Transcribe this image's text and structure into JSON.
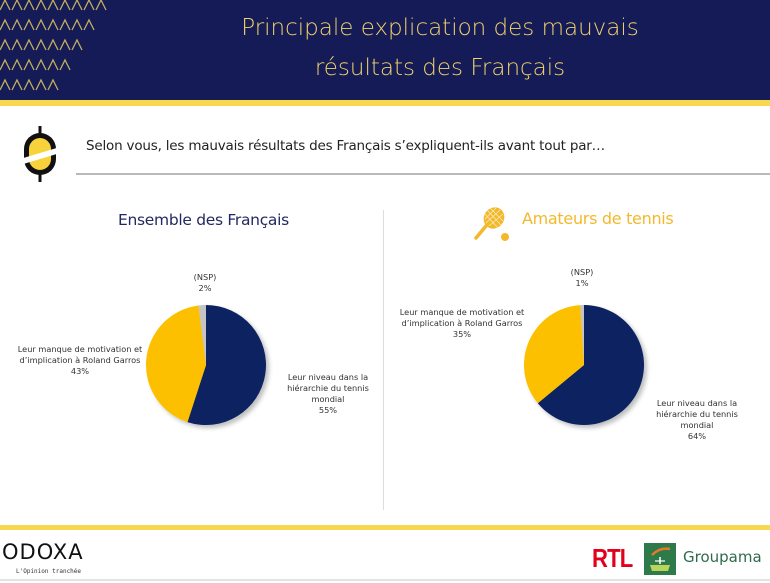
{
  "header": {
    "title_line1": "Principale explication des mauvais",
    "title_line2": "résultats des Français"
  },
  "question": "Selon vous, les mauvais résultats des Français s’expliquent-ils avant tout par…",
  "colors": {
    "navy": "#0e2461",
    "yellow": "#fcc000",
    "gray": "#c4c4c4",
    "accent_stripe": "#f7d84e",
    "header_bg": "#141b57"
  },
  "chart_data": [
    {
      "type": "pie",
      "title": "Ensemble des Français",
      "slices": [
        {
          "label": "Leur niveau dans la hiérarchie du tennis mondial",
          "lines": [
            "Leur niveau dans la",
            "hiérarchie du tennis",
            "mondial"
          ],
          "value": 55,
          "value_label": "55%",
          "color": "#0e2461"
        },
        {
          "label": "Leur manque de motivation et d’implication à Roland Garros",
          "lines": [
            "Leur manque de motivation et",
            "d’implication à Roland Garros"
          ],
          "value": 43,
          "value_label": "43%",
          "color": "#fcc000"
        },
        {
          "label": "(NSP)",
          "lines": [
            "(NSP)"
          ],
          "value": 2,
          "value_label": "2%",
          "color": "#c4c4c4"
        }
      ]
    },
    {
      "type": "pie",
      "title": "Amateurs de tennis",
      "slices": [
        {
          "label": "Leur niveau dans la hiérarchie du tennis mondial",
          "lines": [
            "Leur niveau dans la",
            "hiérarchie du tennis",
            "mondial"
          ],
          "value": 64,
          "value_label": "64%",
          "color": "#0e2461"
        },
        {
          "label": "Leur manque de motivation et d’implication à Roland Garros",
          "lines": [
            "Leur manque de motivation et",
            "d’implication à Roland Garros"
          ],
          "value": 35,
          "value_label": "35%",
          "color": "#fcc000"
        },
        {
          "label": "(NSP)",
          "lines": [
            "(NSP)"
          ],
          "value": 1,
          "value_label": "1%",
          "color": "#c4c4c4"
        }
      ]
    }
  ],
  "footer": {
    "brand": "ODOXA",
    "tagline": "L'Opinion tranchée",
    "partner1": "RTL",
    "partner2": "Groupama"
  }
}
